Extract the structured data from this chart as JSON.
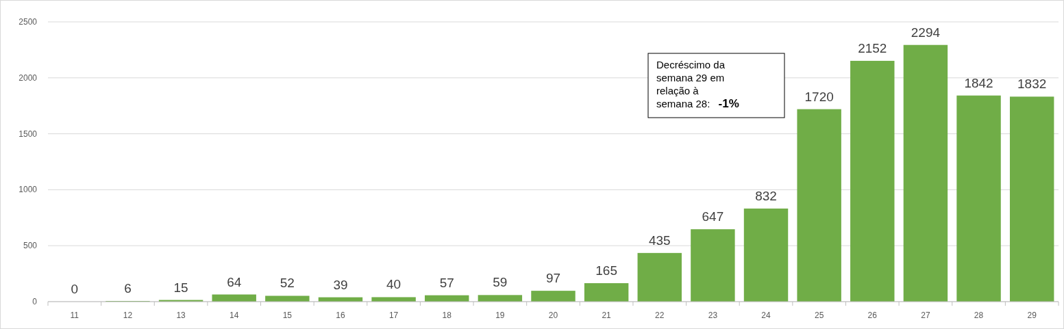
{
  "chart_data": {
    "type": "bar",
    "categories": [
      "11",
      "12",
      "13",
      "14",
      "15",
      "16",
      "17",
      "18",
      "19",
      "20",
      "21",
      "22",
      "23",
      "24",
      "25",
      "26",
      "27",
      "28",
      "29"
    ],
    "values": [
      0,
      6,
      15,
      64,
      52,
      39,
      40,
      57,
      59,
      97,
      165,
      435,
      647,
      832,
      1720,
      2152,
      2294,
      1842,
      1832
    ],
    "color": "#70ad47",
    "ylim": [
      0,
      2500
    ],
    "yticks": [
      0,
      500,
      1000,
      1500,
      2000,
      2500
    ],
    "grid": "y",
    "data_labels": true,
    "annotations": [
      "Decréscimo da semana 29 em relação à semana 28: -1%"
    ]
  }
}
